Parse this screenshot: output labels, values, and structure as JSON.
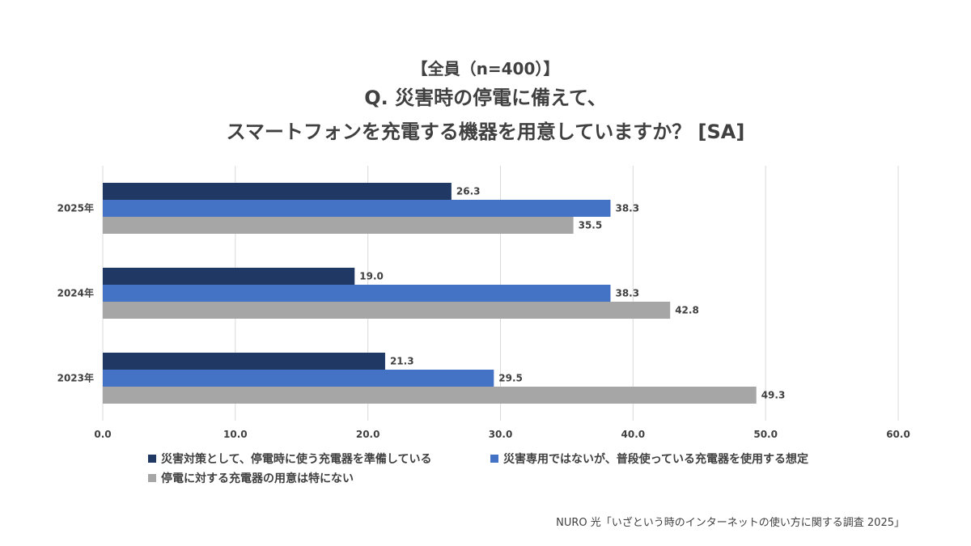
{
  "header": {
    "subtitle": "【全員（n=400）】",
    "title_line1": "Q. 災害時の停電に備えて、",
    "title_line2": "スマートフォンを充電する機器を用意していますか？ [SA]"
  },
  "chart_data": {
    "type": "bar",
    "orientation": "horizontal",
    "categories": [
      "2025年",
      "2024年",
      "2023年"
    ],
    "series": [
      {
        "name": "災害対策として、停電時に使う充電器を準備している",
        "color": "#1f3864",
        "values": [
          26.3,
          19.0,
          21.3
        ],
        "labels": [
          "26.3",
          "19.0",
          "21.3"
        ]
      },
      {
        "name": "災害専用ではないが、普段使っている充電器を使用する想定",
        "color": "#4472c4",
        "values": [
          38.3,
          38.3,
          29.5
        ],
        "labels": [
          "38.3",
          "38.3",
          "29.5"
        ]
      },
      {
        "name": "停電に対する充電器の用意は特にない",
        "color": "#a6a6a6",
        "values": [
          35.5,
          42.8,
          49.3
        ],
        "labels": [
          "35.5",
          "42.8",
          "49.3"
        ]
      }
    ],
    "xlim": [
      0,
      60
    ],
    "xticks": [
      "0.0",
      "10.0",
      "20.0",
      "30.0",
      "40.0",
      "50.0",
      "60.0"
    ],
    "grid": true,
    "legend_position": "bottom"
  },
  "footer": {
    "source": "NURO 光「いざという時のインターネットの使い方に関する調査 2025」"
  }
}
